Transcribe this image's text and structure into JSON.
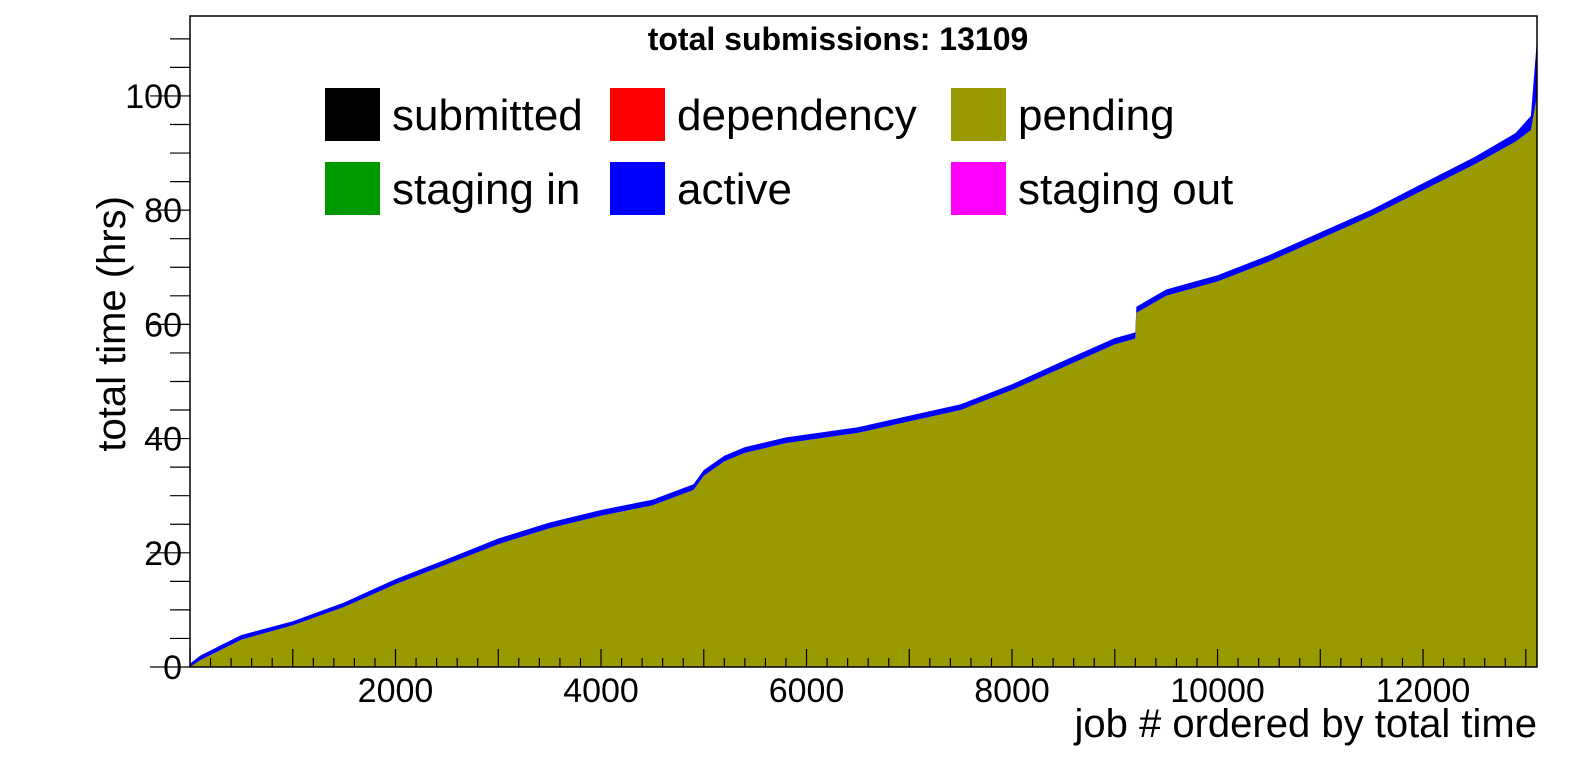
{
  "chart_data": {
    "type": "area",
    "title": "total submissions: 13109",
    "xlabel": "job # ordered by total time",
    "ylabel": "total time (hrs)",
    "xlim": [
      0,
      13109
    ],
    "ylim": [
      0,
      114
    ],
    "x_ticks": [
      2000,
      4000,
      6000,
      8000,
      10000,
      12000
    ],
    "y_ticks": [
      0,
      20,
      40,
      60,
      80,
      100
    ],
    "grid": false,
    "stacked": true,
    "legend": {
      "placement": "top",
      "entries": [
        {
          "name": "submitted",
          "color": "#000000"
        },
        {
          "name": "dependency",
          "color": "#ff0000"
        },
        {
          "name": "pending",
          "color": "#999900"
        },
        {
          "name": "staging in",
          "color": "#009900"
        },
        {
          "name": "active",
          "color": "#0000ff"
        },
        {
          "name": "staging out",
          "color": "#ff00ff"
        }
      ]
    },
    "x": [
      0,
      100,
      300,
      500,
      1000,
      1500,
      2000,
      2500,
      3000,
      3500,
      4000,
      4500,
      4900,
      5000,
      5200,
      5400,
      5800,
      6500,
      7000,
      7500,
      8000,
      8500,
      9000,
      9200,
      9210,
      9500,
      10000,
      10500,
      11000,
      11500,
      12000,
      12500,
      12900,
      13050,
      13109
    ],
    "series": [
      {
        "name": "pending",
        "color": "#999900",
        "values": [
          0,
          1.2,
          3,
          4.8,
          7.3,
          10.5,
          14.5,
          18,
          21.5,
          24.3,
          26.5,
          28.3,
          31,
          33.5,
          36,
          37.5,
          39.2,
          41,
          43,
          45,
          48.5,
          52.5,
          56.5,
          57.5,
          62,
          65,
          67.5,
          71,
          75,
          79,
          83.5,
          88,
          92,
          94,
          100
        ]
      },
      {
        "name": "active",
        "color": "#0000ff",
        "values": [
          0.6,
          0.8,
          0.8,
          0.8,
          0.7,
          0.8,
          0.9,
          0.9,
          1.0,
          1.0,
          1.0,
          1.0,
          1.0,
          1.0,
          1.0,
          1.0,
          1.0,
          1.0,
          1.0,
          1.0,
          1.0,
          1.1,
          1.1,
          1.1,
          1.1,
          1.1,
          1.1,
          1.1,
          1.1,
          1.1,
          1.2,
          1.3,
          1.5,
          2.5,
          10
        ]
      }
    ]
  }
}
